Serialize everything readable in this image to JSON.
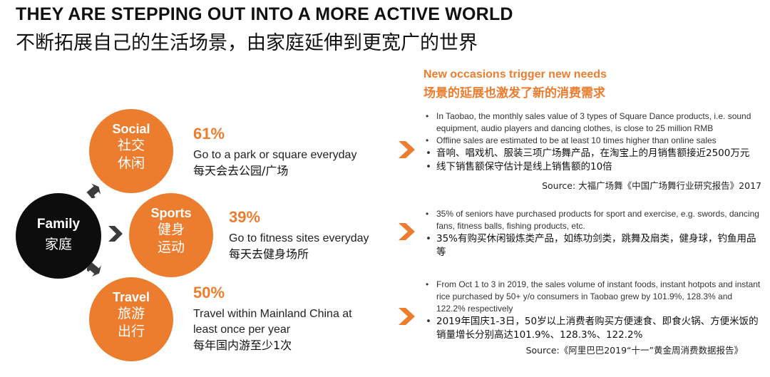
{
  "title": {
    "en": "THEY ARE STEPPING OUT INTO A MORE ACTIVE WORLD",
    "zh": "不断拓展自己的生活场景，由家庭延伸到更宽广的世界"
  },
  "center": {
    "en": "Family",
    "zh": "家庭"
  },
  "categories": [
    {
      "en": "Social",
      "zh1": "社交",
      "zh2": "休闲",
      "pct": "61%",
      "desc": "Go to a park or square everyday",
      "desc_zh": "每天会去公园/广场"
    },
    {
      "en": "Sports",
      "zh1": "健身",
      "zh2": "运动",
      "pct": "39%",
      "desc": "Go to fitness sites everyday",
      "desc_zh": "每天去健身场所"
    },
    {
      "en": "Travel",
      "zh1": "旅游",
      "zh2": "出行",
      "pct": "50%",
      "desc": "Travel within Mainland China at least once per year",
      "desc_zh": "每年国内游至少1次"
    }
  ],
  "right_header": {
    "en": "New occasions trigger new needs",
    "zh": "场景的延展也激发了新的消费需求"
  },
  "blocks": [
    {
      "bullets": [
        "In Taobao, the monthly sales value of 3 types of Square Dance products, i.e. sound equipment, audio players and dancing clothes, is close to 25 million RMB",
        "Offline sales are estimated to be at least 10 times higher than online sales"
      ],
      "bullets_zh": [
        "音响、唱戏机、服装三项广场舞产品，在淘宝上的月销售额接近2500万元",
        "线下销售额保守估计是线上销售额的10倍"
      ],
      "source": "Source: 大福广场舞《中国广场舞行业研究报告》2017"
    },
    {
      "bullets": [
        "35% of seniors have purchased products for sport and exercise, e.g. swords, dancing fans, fitness balls, fishing products, etc."
      ],
      "bullets_zh": [
        "35%有购买休闲锻炼类产品，如练功剑类，跳舞及扇类，健身球，钓鱼用品等"
      ],
      "source": ""
    },
    {
      "bullets": [
        "From Oct 1 to 3 in 2019, the sales volume of instant foods, instant hotpots and instant rice purchased by 50+ y/o consumers in Taobao grew by 101.9%, 128.3% and 122.2% respectively"
      ],
      "bullets_zh": [
        "2019年国庆1-3日，50岁以上消费者购买方便速食、即食火锅、方便米饭的销量增长分别高达101.9%、128.3%、122.2%"
      ],
      "source": "Source:《阿里巴巴2019“十一”黄金周消费数据报告》"
    }
  ],
  "colors": {
    "accent": "#ec7d2e",
    "dark": "#0d0d0d",
    "arrow": "#3c3c3c"
  },
  "icons": [
    "arrow-up-right-icon",
    "arrow-right-icon",
    "arrow-down-right-icon",
    "chevron-right-icon"
  ]
}
